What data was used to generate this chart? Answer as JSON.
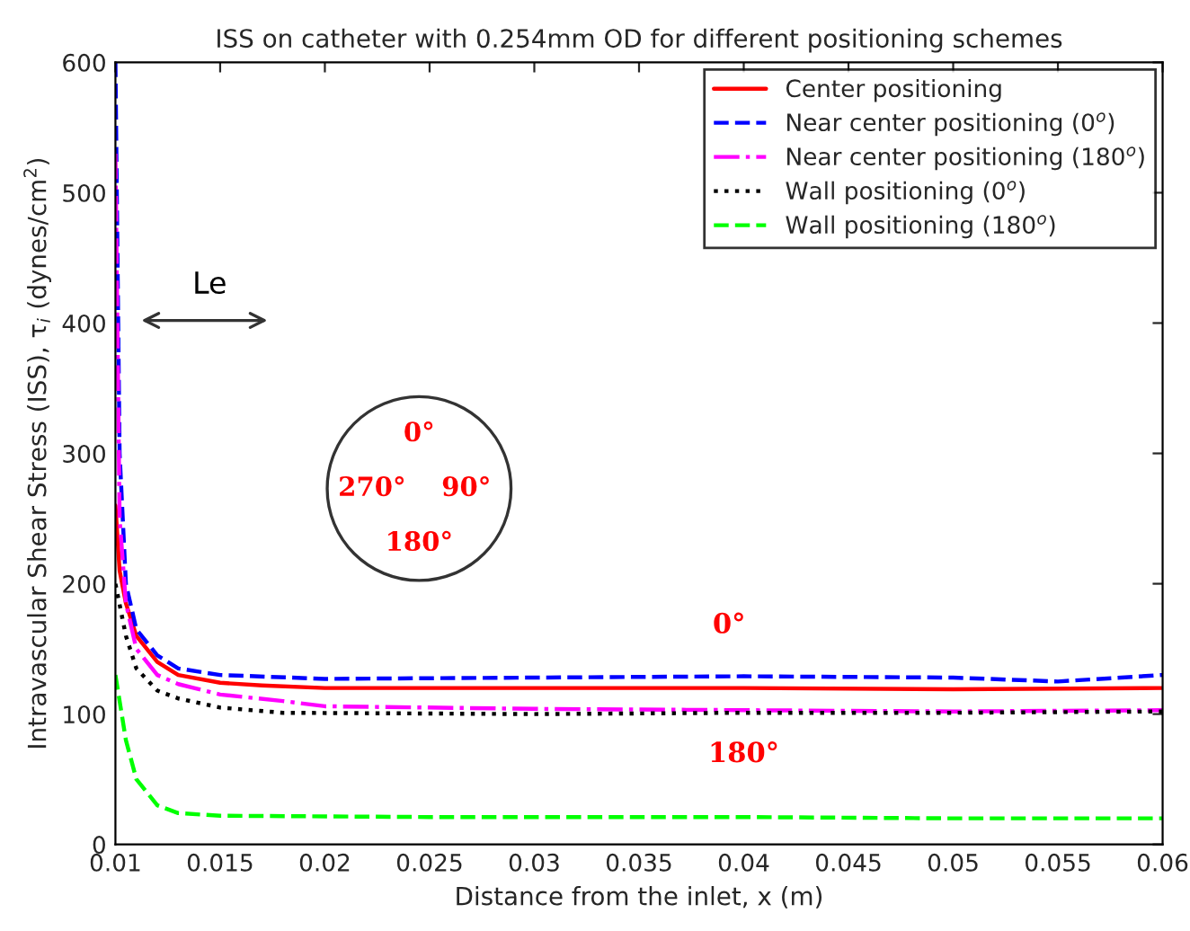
{
  "chart_data": {
    "type": "line",
    "title": "ISS on catheter with 0.254mm OD for different positioning schemes",
    "xlabel": "Distance from the inlet, x (m)",
    "ylabel": "Intravascular Shear Stress (ISS), τ$_{i}$ (dynes/cm$^{2}$)",
    "xlim": [
      0.01,
      0.06
    ],
    "xticks": [
      0.01,
      0.015,
      0.02,
      0.025,
      0.03,
      0.035,
      0.04,
      0.045,
      0.05,
      0.055,
      0.06
    ],
    "ylim": [
      0,
      600
    ],
    "yticks": [
      0,
      100,
      200,
      300,
      400,
      500,
      600
    ],
    "grid": false,
    "legend": "top right",
    "series": [
      {
        "name": "Center positioning",
        "color": "#ff0000",
        "line_style": "solid",
        "x": [
          0.01,
          0.0102,
          0.0105,
          0.011,
          0.012,
          0.013,
          0.015,
          0.017,
          0.02,
          0.03,
          0.04,
          0.05,
          0.06
        ],
        "values": [
          260,
          210,
          185,
          160,
          140,
          130,
          124,
          122,
          120,
          120,
          120,
          119,
          120
        ]
      },
      {
        "name": "Near center positioning (0$^{o}$)",
        "color": "#0000ff",
        "line_style": "dashed",
        "x": [
          0.01,
          0.0102,
          0.0105,
          0.011,
          0.012,
          0.013,
          0.015,
          0.02,
          0.03,
          0.04,
          0.05,
          0.055,
          0.06
        ],
        "values": [
          600,
          300,
          200,
          165,
          145,
          135,
          130,
          127,
          128,
          129,
          128,
          125,
          130
        ]
      },
      {
        "name": "Near center positioning (180$^{o}$)",
        "color": "#ff00ff",
        "line_style": "dashdot",
        "x": [
          0.01,
          0.0102,
          0.0105,
          0.011,
          0.012,
          0.013,
          0.015,
          0.018,
          0.02,
          0.03,
          0.04,
          0.05,
          0.06
        ],
        "values": [
          530,
          250,
          185,
          150,
          130,
          123,
          115,
          110,
          106,
          104,
          103,
          102,
          103
        ]
      },
      {
        "name": "Wall positioning (0$^{o}$)",
        "color": "#000000",
        "line_style": "dotted",
        "x": [
          0.01,
          0.0105,
          0.011,
          0.012,
          0.013,
          0.015,
          0.018,
          0.03,
          0.04,
          0.05,
          0.06
        ],
        "values": [
          200,
          160,
          135,
          118,
          112,
          105,
          101,
          100,
          101,
          101,
          102
        ]
      },
      {
        "name": "Wall positioning (180$^{o}$)",
        "color": "#00ff00",
        "line_style": "dashed",
        "x": [
          0.01,
          0.0105,
          0.011,
          0.012,
          0.013,
          0.015,
          0.025,
          0.04,
          0.05,
          0.06
        ],
        "values": [
          130,
          80,
          50,
          30,
          24,
          22,
          21,
          21,
          20,
          20
        ]
      }
    ],
    "annotations": [
      "Le",
      "0°",
      "270°",
      "90°",
      "180°",
      "0°",
      "180°"
    ]
  }
}
